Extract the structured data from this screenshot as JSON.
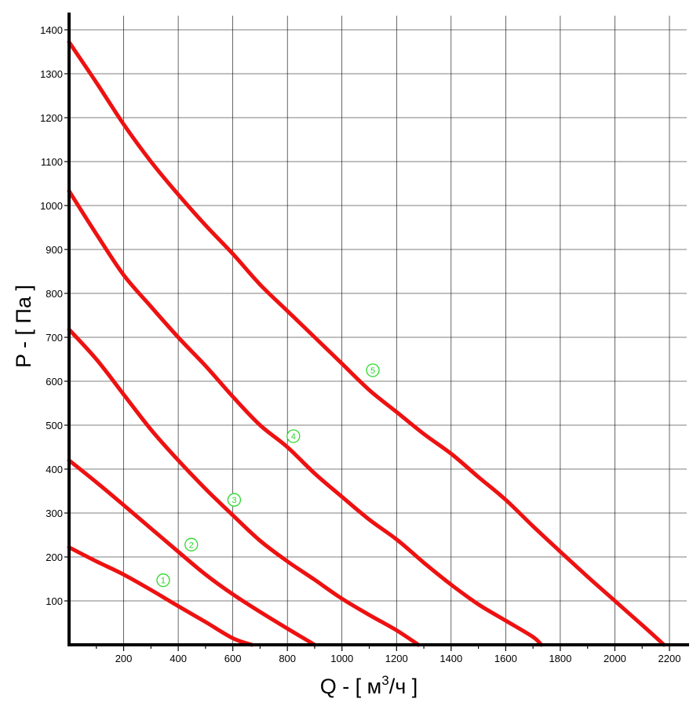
{
  "chart_data": {
    "type": "line",
    "title": "",
    "xlabel": {
      "prefix": "Q - [ м",
      "sup": "3",
      "suffix": "/ч ]"
    },
    "ylabel": "P - [ Па ]",
    "xlim": [
      0,
      2200
    ],
    "ylim": [
      0,
      1400
    ],
    "x_ticks": [
      200,
      400,
      600,
      800,
      1000,
      1200,
      1400,
      1600,
      1800,
      2000,
      2200
    ],
    "y_ticks": [
      100,
      200,
      300,
      400,
      500,
      600,
      700,
      800,
      900,
      1000,
      1100,
      1200,
      1300,
      1400
    ],
    "grid": true,
    "line_color": "#ee1111",
    "label_color": "#2bd92b",
    "series": [
      {
        "name": "1",
        "label_at": [
          345,
          147
        ],
        "points": [
          [
            0,
            222
          ],
          [
            100,
            190
          ],
          [
            200,
            160
          ],
          [
            300,
            125
          ],
          [
            400,
            88
          ],
          [
            500,
            52
          ],
          [
            600,
            15
          ],
          [
            670,
            0
          ]
        ]
      },
      {
        "name": "2",
        "label_at": [
          448,
          228
        ],
        "points": [
          [
            0,
            420
          ],
          [
            100,
            370
          ],
          [
            200,
            318
          ],
          [
            300,
            265
          ],
          [
            400,
            212
          ],
          [
            500,
            160
          ],
          [
            600,
            115
          ],
          [
            700,
            75
          ],
          [
            800,
            37
          ],
          [
            900,
            0
          ]
        ]
      },
      {
        "name": "3",
        "label_at": [
          605,
          330
        ],
        "points": [
          [
            0,
            718
          ],
          [
            100,
            650
          ],
          [
            200,
            570
          ],
          [
            300,
            490
          ],
          [
            400,
            420
          ],
          [
            500,
            355
          ],
          [
            600,
            295
          ],
          [
            700,
            237
          ],
          [
            800,
            190
          ],
          [
            900,
            148
          ],
          [
            1000,
            105
          ],
          [
            1100,
            68
          ],
          [
            1200,
            33
          ],
          [
            1280,
            0
          ]
        ]
      },
      {
        "name": "4",
        "label_at": [
          822,
          475
        ],
        "points": [
          [
            0,
            1033
          ],
          [
            100,
            935
          ],
          [
            200,
            842
          ],
          [
            300,
            770
          ],
          [
            400,
            700
          ],
          [
            500,
            635
          ],
          [
            600,
            565
          ],
          [
            700,
            500
          ],
          [
            800,
            450
          ],
          [
            900,
            390
          ],
          [
            1000,
            337
          ],
          [
            1100,
            285
          ],
          [
            1200,
            240
          ],
          [
            1300,
            187
          ],
          [
            1400,
            137
          ],
          [
            1500,
            92
          ],
          [
            1600,
            55
          ],
          [
            1700,
            18
          ],
          [
            1730,
            0
          ]
        ]
      },
      {
        "name": "5",
        "label_at": [
          1113,
          625
        ],
        "points": [
          [
            0,
            1372
          ],
          [
            100,
            1280
          ],
          [
            200,
            1185
          ],
          [
            300,
            1100
          ],
          [
            400,
            1025
          ],
          [
            500,
            955
          ],
          [
            600,
            890
          ],
          [
            700,
            820
          ],
          [
            800,
            760
          ],
          [
            900,
            700
          ],
          [
            1000,
            640
          ],
          [
            1100,
            580
          ],
          [
            1200,
            530
          ],
          [
            1300,
            480
          ],
          [
            1400,
            435
          ],
          [
            1500,
            382
          ],
          [
            1600,
            330
          ],
          [
            1700,
            270
          ],
          [
            1800,
            212
          ],
          [
            1900,
            155
          ],
          [
            2000,
            100
          ],
          [
            2100,
            45
          ],
          [
            2180,
            0
          ]
        ]
      }
    ]
  }
}
